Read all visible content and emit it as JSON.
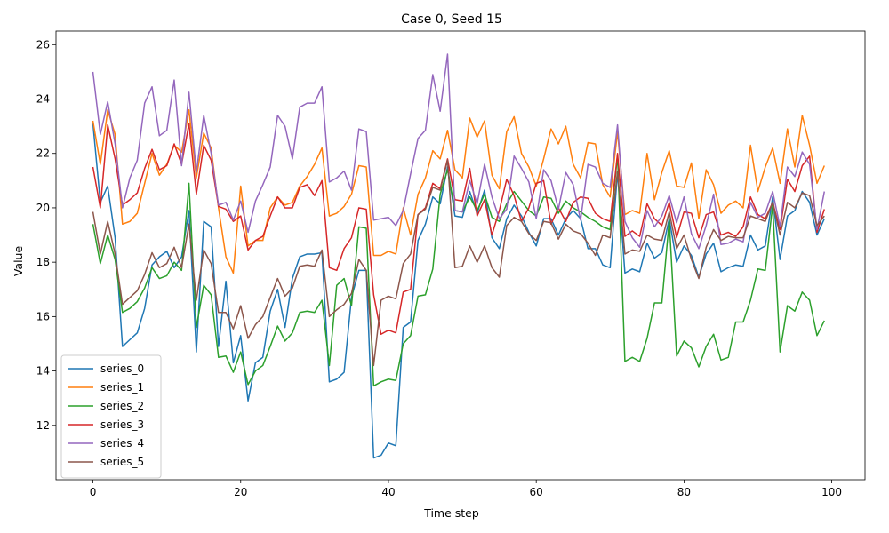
{
  "chart_data": {
    "type": "line",
    "title": "Case 0, Seed 15",
    "xlabel": "Time step",
    "ylabel": "Value",
    "xlim": [
      -5.0,
      104.5
    ],
    "ylim": [
      10.0,
      26.5
    ],
    "xticks": [
      0,
      20,
      40,
      60,
      80,
      100
    ],
    "yticks": [
      12,
      14,
      16,
      18,
      20,
      22,
      24,
      26
    ],
    "legend_position": "lower-left",
    "grid": false,
    "x": [
      0,
      1,
      2,
      3,
      4,
      5,
      6,
      7,
      8,
      9,
      10,
      11,
      12,
      13,
      14,
      15,
      16,
      17,
      18,
      19,
      20,
      21,
      22,
      23,
      24,
      25,
      26,
      27,
      28,
      29,
      30,
      31,
      32,
      33,
      34,
      35,
      36,
      37,
      38,
      39,
      40,
      41,
      42,
      43,
      44,
      45,
      46,
      47,
      48,
      49,
      50,
      51,
      52,
      53,
      54,
      55,
      56,
      57,
      58,
      59,
      60,
      61,
      62,
      63,
      64,
      65,
      66,
      67,
      68,
      69,
      70,
      71,
      72,
      73,
      74,
      75,
      76,
      77,
      78,
      79,
      80,
      81,
      82,
      83,
      84,
      85,
      86,
      87,
      88,
      89,
      90,
      91,
      92,
      93,
      94,
      95,
      96,
      97,
      98,
      99
    ],
    "series": [
      {
        "name": "series_0",
        "color": "#1f77b4",
        "values": [
          23.1,
          20.2,
          20.8,
          18.9,
          14.9,
          15.15,
          15.4,
          16.3,
          17.9,
          18.2,
          18.4,
          17.8,
          18.2,
          19.9,
          14.7,
          19.5,
          19.3,
          14.9,
          17.3,
          14.3,
          15.3,
          12.9,
          14.3,
          14.5,
          16.2,
          17.0,
          15.6,
          17.4,
          18.2,
          18.3,
          18.3,
          18.35,
          13.6,
          13.7,
          13.95,
          16.7,
          17.7,
          17.7,
          10.8,
          10.9,
          11.35,
          11.25,
          15.6,
          15.8,
          18.8,
          19.4,
          20.4,
          20.15,
          21.5,
          19.7,
          19.65,
          20.6,
          19.8,
          20.65,
          18.9,
          18.5,
          19.6,
          20.1,
          19.7,
          19.1,
          18.6,
          19.6,
          19.6,
          19.0,
          19.6,
          19.9,
          19.6,
          18.5,
          18.5,
          17.9,
          17.8,
          21.3,
          17.6,
          17.75,
          17.65,
          18.7,
          18.15,
          18.35,
          19.6,
          18.0,
          18.6,
          18.25,
          17.45,
          18.3,
          18.7,
          17.65,
          17.8,
          17.9,
          17.85,
          19.0,
          18.45,
          18.6,
          20.4,
          18.1,
          19.7,
          19.9,
          20.6,
          20.2,
          19.0,
          19.6
        ]
      },
      {
        "name": "series_1",
        "color": "#ff7f0e",
        "values": [
          23.2,
          21.6,
          23.6,
          22.7,
          19.4,
          19.5,
          19.8,
          20.9,
          22.0,
          21.2,
          21.6,
          22.3,
          22.05,
          23.6,
          21.1,
          22.75,
          22.2,
          20.0,
          18.2,
          17.6,
          20.8,
          18.6,
          18.8,
          18.8,
          20.0,
          20.4,
          20.1,
          20.2,
          20.8,
          21.15,
          21.6,
          22.2,
          19.7,
          19.8,
          20.05,
          20.5,
          21.55,
          21.5,
          18.25,
          18.25,
          18.4,
          18.3,
          20.0,
          19.0,
          20.5,
          21.1,
          22.1,
          21.8,
          22.85,
          21.4,
          21.1,
          23.3,
          22.6,
          23.2,
          21.2,
          20.7,
          22.8,
          23.35,
          22.0,
          21.5,
          20.8,
          21.8,
          22.9,
          22.35,
          23.0,
          21.6,
          21.1,
          22.4,
          22.35,
          20.85,
          20.4,
          22.8,
          19.75,
          19.9,
          19.8,
          22.0,
          20.3,
          21.3,
          22.1,
          20.8,
          20.75,
          21.65,
          19.6,
          21.4,
          20.85,
          19.8,
          20.1,
          20.25,
          20.0,
          22.3,
          20.6,
          21.5,
          22.2,
          20.9,
          22.9,
          21.5,
          23.4,
          22.3,
          20.9,
          21.55
        ]
      },
      {
        "name": "series_2",
        "color": "#2ca02c",
        "values": [
          19.4,
          17.95,
          19.0,
          18.1,
          16.15,
          16.3,
          16.55,
          17.05,
          17.8,
          17.4,
          17.5,
          18.0,
          17.7,
          20.9,
          15.6,
          17.15,
          16.8,
          14.5,
          14.55,
          13.95,
          14.7,
          13.5,
          14.0,
          14.2,
          14.9,
          15.65,
          15.1,
          15.4,
          16.15,
          16.2,
          16.15,
          16.6,
          14.2,
          17.15,
          17.4,
          16.4,
          19.3,
          19.25,
          13.45,
          13.6,
          13.7,
          13.65,
          15.0,
          15.3,
          16.75,
          16.8,
          17.75,
          20.5,
          21.4,
          19.9,
          19.85,
          20.4,
          19.9,
          20.5,
          19.65,
          19.5,
          20.15,
          20.6,
          20.25,
          19.9,
          19.7,
          20.4,
          20.35,
          19.8,
          20.25,
          20.0,
          19.85,
          19.65,
          19.5,
          19.3,
          19.2,
          21.95,
          14.35,
          14.5,
          14.35,
          15.2,
          16.5,
          16.5,
          19.55,
          14.55,
          15.1,
          14.85,
          14.15,
          14.9,
          15.35,
          14.4,
          14.5,
          15.8,
          15.8,
          16.6,
          17.75,
          17.7,
          20.1,
          14.7,
          16.4,
          16.2,
          16.9,
          16.6,
          15.3,
          15.85
        ]
      },
      {
        "name": "series_3",
        "color": "#d62728",
        "values": [
          21.5,
          20.0,
          23.05,
          21.8,
          20.1,
          20.3,
          20.55,
          21.45,
          22.15,
          21.4,
          21.55,
          22.35,
          21.6,
          23.1,
          20.5,
          22.3,
          21.75,
          20.05,
          19.95,
          19.5,
          19.7,
          18.45,
          18.8,
          18.95,
          19.7,
          20.4,
          20.0,
          20.0,
          20.75,
          20.85,
          20.45,
          21.0,
          17.8,
          17.7,
          18.5,
          18.9,
          20.0,
          19.95,
          16.8,
          15.35,
          15.5,
          15.4,
          16.9,
          17.0,
          19.75,
          20.0,
          20.9,
          20.7,
          21.8,
          20.3,
          20.25,
          21.45,
          19.7,
          20.3,
          19.0,
          19.9,
          21.05,
          20.45,
          19.5,
          20.0,
          20.9,
          21.0,
          19.4,
          20.0,
          19.5,
          20.2,
          20.4,
          20.35,
          19.8,
          19.6,
          19.5,
          22.0,
          18.95,
          19.15,
          18.95,
          20.15,
          19.6,
          19.35,
          20.2,
          18.9,
          19.85,
          19.8,
          18.9,
          19.75,
          19.85,
          19.0,
          19.1,
          18.95,
          19.3,
          20.4,
          19.75,
          19.6,
          20.2,
          19.2,
          21.05,
          20.6,
          21.55,
          21.9,
          19.1,
          19.95
        ]
      },
      {
        "name": "series_4",
        "color": "#9467bd",
        "values": [
          25.0,
          22.7,
          23.9,
          22.35,
          20.0,
          21.1,
          21.75,
          23.85,
          24.45,
          22.65,
          22.85,
          24.7,
          21.55,
          24.25,
          21.3,
          23.4,
          22.0,
          20.1,
          20.2,
          19.55,
          20.25,
          19.1,
          20.25,
          20.85,
          21.5,
          23.4,
          23.0,
          21.8,
          23.7,
          23.85,
          23.85,
          24.45,
          20.95,
          21.1,
          21.35,
          20.65,
          22.9,
          22.8,
          19.55,
          19.6,
          19.65,
          19.35,
          19.9,
          21.25,
          22.55,
          22.85,
          24.9,
          23.55,
          25.65,
          19.9,
          19.85,
          21.0,
          20.15,
          21.6,
          20.4,
          19.6,
          19.95,
          21.9,
          21.45,
          20.95,
          19.6,
          21.4,
          21.0,
          19.95,
          21.3,
          20.85,
          19.55,
          21.6,
          21.5,
          20.9,
          20.75,
          23.05,
          19.5,
          18.9,
          18.55,
          19.9,
          19.3,
          19.7,
          20.45,
          19.45,
          20.4,
          19.05,
          18.5,
          19.35,
          20.5,
          18.65,
          18.7,
          18.85,
          18.75,
          20.2,
          19.65,
          19.8,
          20.6,
          19.3,
          21.5,
          21.15,
          22.05,
          21.6,
          19.2,
          20.6
        ]
      },
      {
        "name": "series_5",
        "color": "#8c564b",
        "values": [
          19.85,
          18.3,
          19.5,
          18.3,
          16.45,
          16.7,
          16.95,
          17.55,
          18.35,
          17.8,
          17.95,
          18.55,
          17.8,
          19.4,
          16.6,
          18.45,
          17.95,
          16.15,
          16.15,
          15.55,
          16.4,
          15.2,
          15.7,
          16.0,
          16.7,
          17.4,
          16.75,
          17.05,
          17.85,
          17.9,
          17.85,
          18.45,
          16.0,
          16.25,
          16.45,
          16.85,
          18.1,
          17.7,
          14.2,
          16.6,
          16.75,
          16.65,
          17.95,
          18.3,
          19.75,
          19.95,
          20.75,
          20.65,
          21.75,
          17.8,
          17.85,
          18.6,
          18.0,
          18.6,
          17.8,
          17.45,
          19.35,
          19.65,
          19.5,
          19.05,
          18.8,
          19.5,
          19.45,
          18.85,
          19.4,
          19.15,
          19.05,
          18.7,
          18.25,
          19.0,
          18.9,
          21.35,
          18.3,
          18.45,
          18.4,
          19.0,
          18.85,
          18.8,
          19.85,
          18.5,
          19.0,
          18.1,
          17.4,
          18.55,
          19.2,
          18.8,
          18.95,
          18.9,
          18.9,
          19.7,
          19.6,
          19.5,
          20.2,
          19.0,
          20.2,
          20.0,
          20.55,
          20.45,
          19.35,
          19.7
        ]
      }
    ]
  }
}
